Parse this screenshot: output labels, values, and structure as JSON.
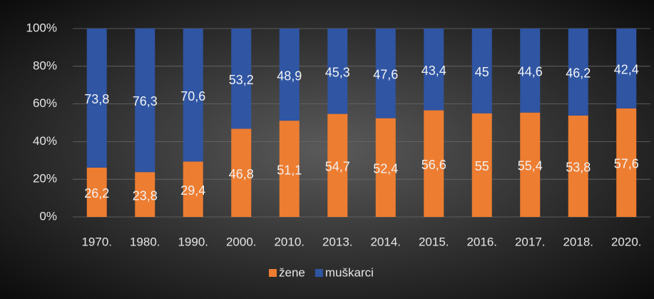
{
  "chart_data": {
    "type": "stacked_bar_percent",
    "categories": [
      "1970.",
      "1980.",
      "1990.",
      "2000.",
      "2010.",
      "2013.",
      "2014.",
      "2015.",
      "2016.",
      "2017.",
      "2018.",
      "2020."
    ],
    "series": [
      {
        "name": "žene",
        "color": "#ed7d31",
        "values": [
          26.2,
          23.8,
          29.4,
          46.8,
          51.1,
          54.7,
          52.4,
          56.6,
          55,
          55.4,
          53.8,
          57.6
        ],
        "value_labels": [
          "26,2",
          "23,8",
          "29,4",
          "46,8",
          "51,1",
          "54,7",
          "52,4",
          "56,6",
          "55",
          "55,4",
          "53,8",
          "57,6"
        ]
      },
      {
        "name": "muškarci",
        "color": "#2f55a3",
        "values": [
          73.8,
          76.3,
          70.6,
          53.2,
          48.9,
          45.3,
          47.6,
          43.4,
          45,
          44.6,
          46.2,
          42.4
        ],
        "value_labels": [
          "73,8",
          "76,3",
          "70,6",
          "53,2",
          "48,9",
          "45,3",
          "47,6",
          "43,4",
          "45",
          "44,6",
          "46,2",
          "42,4"
        ]
      }
    ],
    "ylim": [
      0,
      100
    ],
    "yticks": [
      {
        "value": 0,
        "label": "0%"
      },
      {
        "value": 20,
        "label": "20%"
      },
      {
        "value": 40,
        "label": "40%"
      },
      {
        "value": 60,
        "label": "60%"
      },
      {
        "value": 80,
        "label": "80%"
      },
      {
        "value": 100,
        "label": "100%"
      }
    ],
    "grid": true,
    "legend": "bottom"
  }
}
